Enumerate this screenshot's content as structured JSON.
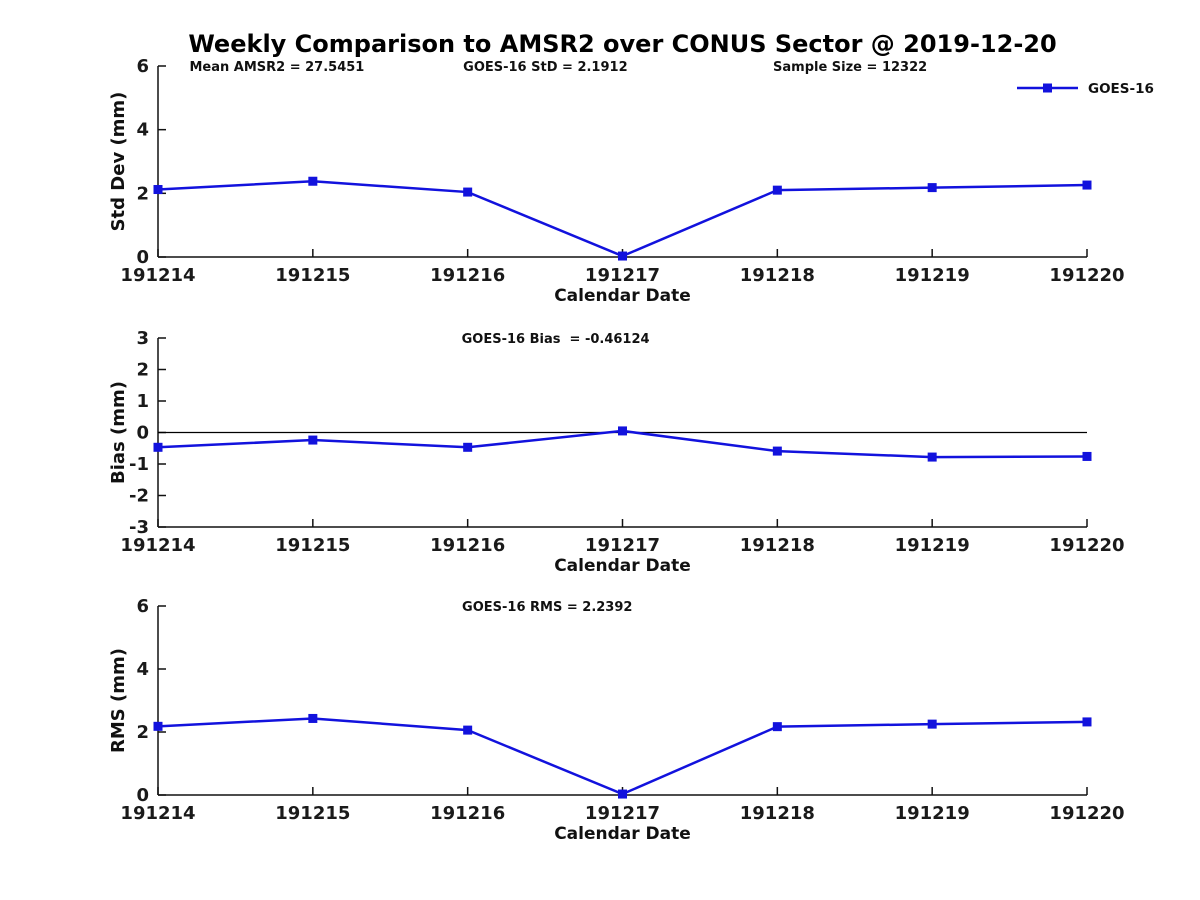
{
  "title": "Weekly Comparison to AMSR2 over CONUS Sector @ 2019-12-20",
  "colors": {
    "series_line": "#1212dd",
    "axis": "#111111",
    "zero_line": "#000000",
    "tick_text": "#1a1a1a",
    "annotation_text": "#111111",
    "title_text": "#000000"
  },
  "legend": {
    "label": "GOES-16",
    "position": "top-right",
    "marker": "filled-square"
  },
  "stats": {
    "mean_amsr2": 27.5451,
    "goes16_std": 2.1912,
    "sample_size": 12322,
    "goes16_bias": -0.46124,
    "goes16_rms": 2.2392
  },
  "chart_data": [
    {
      "id": "stddev",
      "type": "line",
      "title": "",
      "xlabel": "Calendar Date",
      "ylabel": "Std Dev (mm)",
      "ylim": [
        0,
        6
      ],
      "yticks": [
        0,
        2,
        4,
        6
      ],
      "categories": [
        "191214",
        "191215",
        "191216",
        "191217",
        "191218",
        "191219",
        "191220"
      ],
      "series": [
        {
          "name": "GOES-16",
          "values": [
            2.12,
            2.38,
            2.04,
            0.03,
            2.1,
            2.18,
            2.26
          ]
        }
      ],
      "annotations": [
        "Mean AMSR2 = 27.5451",
        "GOES-16 StD = 2.1912",
        "Sample Size = 12322"
      ],
      "zero_line": false,
      "grid": false,
      "legend_shown": true
    },
    {
      "id": "bias",
      "type": "line",
      "title": "",
      "xlabel": "Calendar Date",
      "ylabel": "Bias (mm)",
      "ylim": [
        -3,
        3
      ],
      "yticks": [
        3,
        2,
        1,
        0,
        -1,
        -2,
        -3
      ],
      "categories": [
        "191214",
        "191215",
        "191216",
        "191217",
        "191218",
        "191219",
        "191220"
      ],
      "series": [
        {
          "name": "GOES-16",
          "values": [
            -0.47,
            -0.24,
            -0.47,
            0.05,
            -0.59,
            -0.78,
            -0.76
          ]
        }
      ],
      "annotations": [
        "GOES-16 Bias  = -0.46124"
      ],
      "zero_line": true,
      "grid": false,
      "legend_shown": false
    },
    {
      "id": "rms",
      "type": "line",
      "title": "",
      "xlabel": "Calendar Date",
      "ylabel": "RMS (mm)",
      "ylim": [
        0,
        6
      ],
      "yticks": [
        0,
        2,
        4,
        6
      ],
      "categories": [
        "191214",
        "191215",
        "191216",
        "191217",
        "191218",
        "191219",
        "191220"
      ],
      "series": [
        {
          "name": "GOES-16",
          "values": [
            2.18,
            2.43,
            2.06,
            0.03,
            2.17,
            2.25,
            2.32
          ]
        }
      ],
      "annotations": [
        "GOES-16 RMS = 2.2392"
      ],
      "zero_line": false,
      "grid": false,
      "legend_shown": false
    }
  ]
}
